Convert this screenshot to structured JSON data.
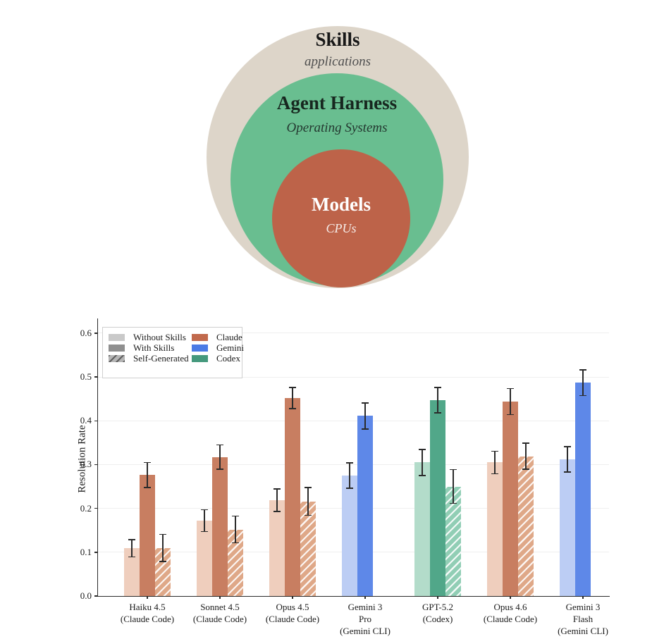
{
  "venn": {
    "layers": [
      {
        "title": "Skills",
        "subtitle": "applications",
        "color": "#DDD5C9",
        "title_color": "#171717",
        "subtitle_color": "#4f4f4f"
      },
      {
        "title": "Agent Harness",
        "subtitle": "Operating Systems",
        "color": "#69BE90",
        "title_color": "#17271f",
        "subtitle_color": "#243830"
      },
      {
        "title": "Models",
        "subtitle": "CPUs",
        "color": "#BD6349",
        "title_color": "#ffffff",
        "subtitle_color": "#f6ede9"
      }
    ]
  },
  "chart_data": {
    "type": "bar",
    "title": "",
    "xlabel": "",
    "ylabel": "Resolution Rate",
    "ylim": [
      0,
      0.6
    ],
    "yticks": [
      0.0,
      0.1,
      0.2,
      0.3,
      0.4,
      0.5,
      0.6
    ],
    "grid": true,
    "legend_position": "upper-left",
    "categories": [
      {
        "lines": [
          "Haiku 4.5",
          "(Claude Code)"
        ],
        "family": "claude"
      },
      {
        "lines": [
          "Sonnet 4.5",
          "(Claude Code)"
        ],
        "family": "claude"
      },
      {
        "lines": [
          "Opus 4.5",
          "(Claude Code)"
        ],
        "family": "claude"
      },
      {
        "lines": [
          "Gemini 3",
          "Pro",
          "(Gemini CLI)"
        ],
        "family": "gemini"
      },
      {
        "lines": [
          "GPT-5.2",
          "(Codex)"
        ],
        "family": "codex"
      },
      {
        "lines": [
          "Opus 4.6",
          "(Claude Code)"
        ],
        "family": "claude"
      },
      {
        "lines": [
          "Gemini 3",
          "Flash",
          "(Gemini CLI)"
        ],
        "family": "gemini"
      }
    ],
    "series": [
      {
        "name": "Without Skills",
        "style": "light",
        "values": [
          0.109,
          0.172,
          0.219,
          0.275,
          0.305,
          0.305,
          0.312
        ],
        "errors": [
          0.021,
          0.026,
          0.027,
          0.03,
          0.031,
          0.027,
          0.03
        ]
      },
      {
        "name": "With Skills",
        "style": "solid",
        "values": [
          0.276,
          0.317,
          0.452,
          0.411,
          0.447,
          0.444,
          0.487
        ],
        "errors": [
          0.03,
          0.029,
          0.025,
          0.031,
          0.03,
          0.031,
          0.031
        ]
      },
      {
        "name": "Self-Generated",
        "style": "hatch",
        "values": [
          0.11,
          0.152,
          0.216,
          null,
          0.25,
          0.319,
          null
        ],
        "errors": [
          0.032,
          0.032,
          0.033,
          null,
          0.04,
          0.031,
          null
        ]
      }
    ],
    "family_colors": {
      "claude": {
        "solid": "#C87E61",
        "light": "#EFCEBD",
        "hatch": "#DFA888"
      },
      "gemini": {
        "solid": "#5E88E8",
        "light": "#BCCDF4",
        "hatch": null
      },
      "codex": {
        "solid": "#51A789",
        "light": "#B3DCCA",
        "hatch": "#91CEB5"
      }
    },
    "legend": {
      "style_entries": [
        {
          "label": "Without Skills",
          "color": "#C9C9C9",
          "hatch": false
        },
        {
          "label": "With Skills",
          "color": "#8F8F8F",
          "hatch": false
        },
        {
          "label": "Self-Generated",
          "color": "#B5B5B5",
          "hatch": true
        }
      ],
      "family_entries": [
        {
          "label": "Claude",
          "color": "#C1694C"
        },
        {
          "label": "Gemini",
          "color": "#4B7BE5"
        },
        {
          "label": "Codex",
          "color": "#45997D"
        }
      ]
    }
  }
}
